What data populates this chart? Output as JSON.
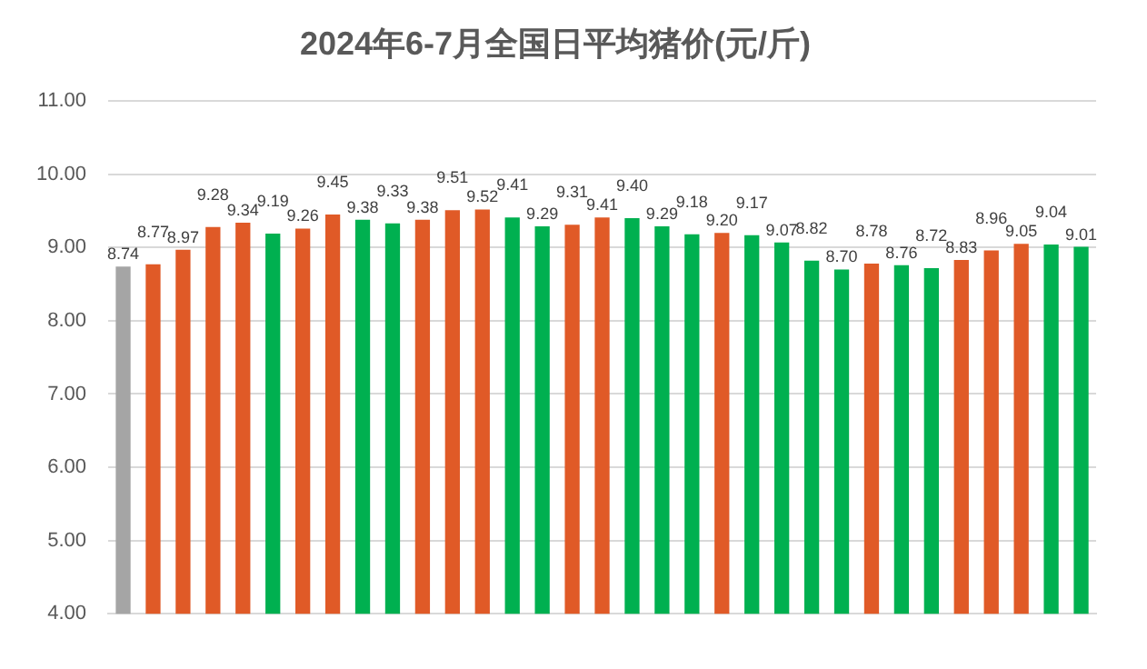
{
  "chart_data": {
    "type": "bar",
    "title": "2024年6-7月全国日平均猪价(元/斤)",
    "categories": [
      null,
      null,
      null,
      null,
      null,
      null,
      null,
      null,
      null,
      null,
      null,
      null,
      null,
      null,
      null,
      null,
      null,
      null,
      null,
      null,
      null,
      null,
      null,
      null,
      null,
      null,
      null,
      null,
      null,
      null,
      null,
      null,
      null
    ],
    "values": [
      8.74,
      8.77,
      8.97,
      9.28,
      9.34,
      9.19,
      9.26,
      9.45,
      9.38,
      9.33,
      9.38,
      9.51,
      9.52,
      9.41,
      9.29,
      9.31,
      9.41,
      9.4,
      9.29,
      9.18,
      9.2,
      9.17,
      9.07,
      8.82,
      8.7,
      8.78,
      8.76,
      8.72,
      8.83,
      8.96,
      9.05,
      9.04,
      9.01
    ],
    "colors": [
      "#a5a5a5",
      "#e05a27",
      "#e05a27",
      "#e05a27",
      "#e05a27",
      "#00b050",
      "#e05a27",
      "#e05a27",
      "#00b050",
      "#00b050",
      "#e05a27",
      "#e05a27",
      "#e05a27",
      "#00b050",
      "#00b050",
      "#e05a27",
      "#e05a27",
      "#00b050",
      "#00b050",
      "#00b050",
      "#e05a27",
      "#00b050",
      "#00b050",
      "#00b050",
      "#00b050",
      "#e05a27",
      "#00b050",
      "#00b050",
      "#e05a27",
      "#e05a27",
      "#e05a27",
      "#00b050",
      "#00b050"
    ],
    "value_labels": [
      "8.74",
      "8.77",
      "8.97",
      "9.28",
      "9.34",
      "9.19",
      "9.26",
      "9.45",
      "9.38",
      "9.33",
      "9.38",
      "9.51",
      "9.52",
      "9.41",
      "9.29",
      "9.31",
      "9.41",
      "9.40",
      "9.29",
      "9.18",
      "9.20",
      "9.17",
      "9.07",
      "8.82",
      "8.70",
      "8.78",
      "8.76",
      "8.72",
      "8.83",
      "8.96",
      "9.05",
      "9.04",
      "9.01"
    ],
    "ylim": [
      4,
      11
    ],
    "yticks": [
      {
        "value": 4,
        "label": "4.00"
      },
      {
        "value": 5,
        "label": "5.00"
      },
      {
        "value": 6,
        "label": "6.00"
      },
      {
        "value": 7,
        "label": "7.00"
      },
      {
        "value": 8,
        "label": "8.00"
      },
      {
        "value": 9,
        "label": "9.00"
      },
      {
        "value": 10,
        "label": "10.00"
      },
      {
        "value": 11,
        "label": "11.00"
      }
    ],
    "grid": "y",
    "legend": false
  }
}
